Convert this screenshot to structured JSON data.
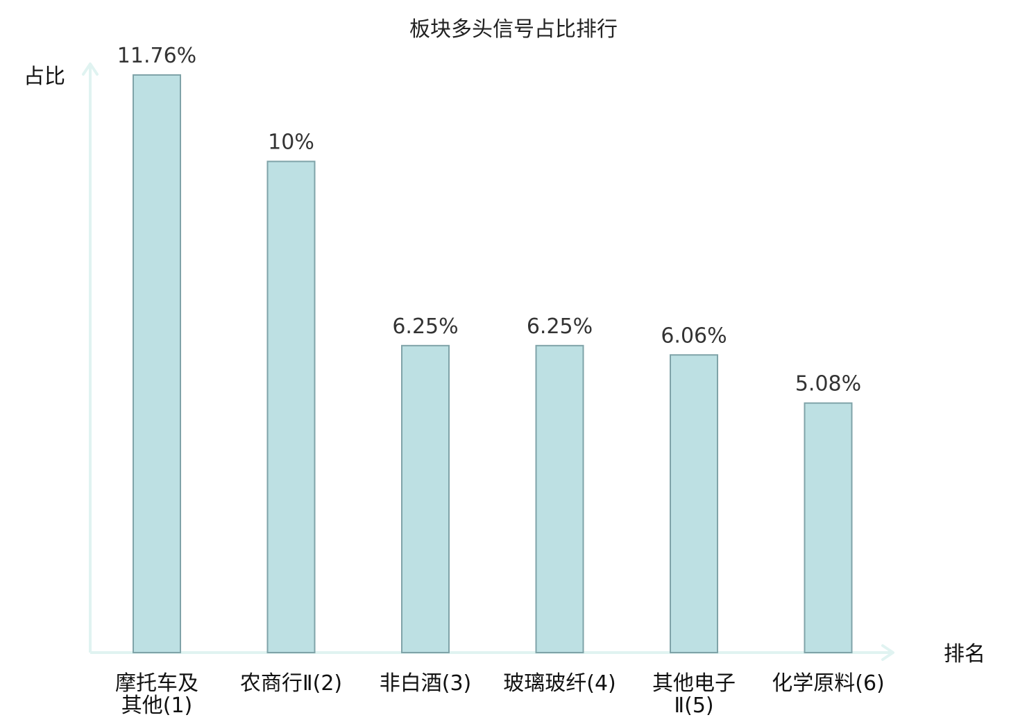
{
  "chart_data": {
    "type": "bar",
    "title": "板块多头信号占比排行",
    "xlabel": "排名",
    "ylabel": "占比",
    "ylim": [
      0,
      11.76
    ],
    "grid": false,
    "legend": "none",
    "categories": [
      {
        "line1": "摩托车及",
        "line2": "其他(1)"
      },
      {
        "line1": "农商行Ⅱ(2)",
        "line2": ""
      },
      {
        "line1": "非白酒(3)",
        "line2": ""
      },
      {
        "line1": "玻璃玻纤(4)",
        "line2": ""
      },
      {
        "line1": "其他电子",
        "line2": "Ⅱ(5)"
      },
      {
        "line1": "化学原料(6)",
        "line2": ""
      }
    ],
    "values": [
      11.76,
      10,
      6.25,
      6.25,
      6.06,
      5.08
    ],
    "value_labels": [
      "11.76%",
      "10%",
      "6.25%",
      "6.25%",
      "6.06%",
      "5.08%"
    ],
    "highlight_index": 5,
    "colors": {
      "bar_fill": "#bde0e3",
      "bar_stroke": "#7fa3a8",
      "axis": "#e0f3f1",
      "highlight_text": "#e00000",
      "label_text": "#333333"
    }
  }
}
